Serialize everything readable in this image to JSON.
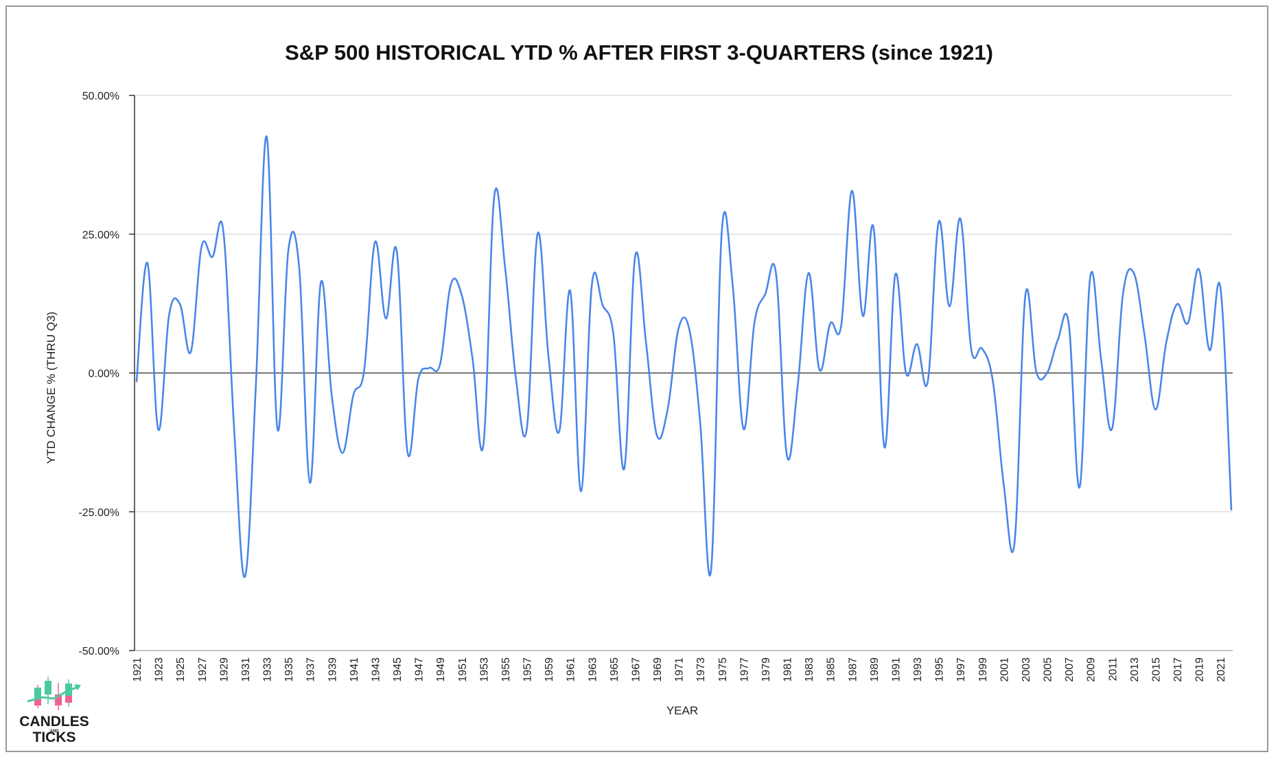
{
  "chart_data": {
    "type": "line",
    "title": "S&P 500 HISTORICAL YTD % AFTER FIRST 3-QUARTERS (since 1921)",
    "xlabel": "YEAR",
    "ylabel": "YTD CHANGE % (THRU Q3)",
    "ylim": [
      -50,
      50
    ],
    "yticks": [
      50,
      25,
      0,
      -25,
      -50
    ],
    "ytick_labels": [
      "50.00%",
      "25.00%",
      "0.00%",
      "-25.00%",
      "-50.00%"
    ],
    "xtick_labels": [
      "1921",
      "1923",
      "1925",
      "1927",
      "1929",
      "1931",
      "1933",
      "1935",
      "1937",
      "1939",
      "1941",
      "1943",
      "1945",
      "1947",
      "1949",
      "1951",
      "1953",
      "1955",
      "1957",
      "1959",
      "1961",
      "1963",
      "1965",
      "1967",
      "1969",
      "1971",
      "1973",
      "1975",
      "1977",
      "1979",
      "1981",
      "1983",
      "1985",
      "1987",
      "1989",
      "1991",
      "1993",
      "1995",
      "1997",
      "1999",
      "2001",
      "2003",
      "2005",
      "2007",
      "2009",
      "2011",
      "2013",
      "2015",
      "2017",
      "2019",
      "2021"
    ],
    "grid": true,
    "line_color": "#4a86e8",
    "x": [
      1921,
      1922,
      1923,
      1924,
      1925,
      1926,
      1927,
      1928,
      1929,
      1930,
      1931,
      1932,
      1933,
      1934,
      1935,
      1936,
      1937,
      1938,
      1939,
      1940,
      1941,
      1942,
      1943,
      1944,
      1945,
      1946,
      1947,
      1948,
      1949,
      1950,
      1951,
      1952,
      1953,
      1954,
      1955,
      1956,
      1957,
      1958,
      1959,
      1960,
      1961,
      1962,
      1963,
      1964,
      1965,
      1966,
      1967,
      1968,
      1969,
      1970,
      1971,
      1972,
      1973,
      1974,
      1975,
      1976,
      1977,
      1978,
      1979,
      1980,
      1981,
      1982,
      1983,
      1984,
      1985,
      1986,
      1987,
      1988,
      1989,
      1990,
      1991,
      1992,
      1993,
      1994,
      1995,
      1996,
      1997,
      1998,
      1999,
      2000,
      2001,
      2002,
      2003,
      2004,
      2005,
      2006,
      2007,
      2008,
      2009,
      2010,
      2011,
      2012,
      2013,
      2014,
      2015,
      2016,
      2017,
      2018,
      2019,
      2020,
      2021,
      2022
    ],
    "series": [
      {
        "values": [
          -1.5,
          19.8,
          -10.2,
          10.5,
          12.4,
          3.8,
          22.8,
          20.9,
          25.6,
          -10.0,
          -36.7,
          -2.5,
          42.6,
          -10.1,
          22.1,
          19.0,
          -19.8,
          16.3,
          -4.0,
          -14.4,
          -4.0,
          0.5,
          23.6,
          9.8,
          22.0,
          -14.3,
          -1.0,
          0.9,
          1.6,
          16.0,
          14.0,
          2.5,
          -12.9,
          31.8,
          19.0,
          -1.0,
          -10.1,
          25.1,
          3.0,
          -10.5,
          14.8,
          -21.3,
          15.9,
          12.2,
          6.8,
          -17.2,
          21.0,
          5.5,
          -11.2,
          -6.5,
          8.0,
          7.8,
          -9.0,
          -35.5,
          25.8,
          15.7,
          -10.1,
          9.0,
          14.2,
          17.8,
          -14.9,
          -2.2,
          18.0,
          0.6,
          8.9,
          8.5,
          32.8,
          10.3,
          26.1,
          -13.4,
          17.7,
          -0.1,
          5.2,
          -1.5,
          27.2,
          12.0,
          27.8,
          4.3,
          4.4,
          -1.5,
          -20.1,
          -30.5,
          14.0,
          0.3,
          0.0,
          6.0,
          8.9,
          -20.6,
          17.5,
          2.2,
          -10.0,
          14.2,
          18.0,
          6.7,
          -6.6,
          5.5,
          12.4,
          9.0,
          18.7,
          4.1,
          15.3,
          -24.6
        ]
      }
    ]
  },
  "logo": {
    "line1": "CANDLES",
    "line2": "AND",
    "line3": "TICKS"
  }
}
